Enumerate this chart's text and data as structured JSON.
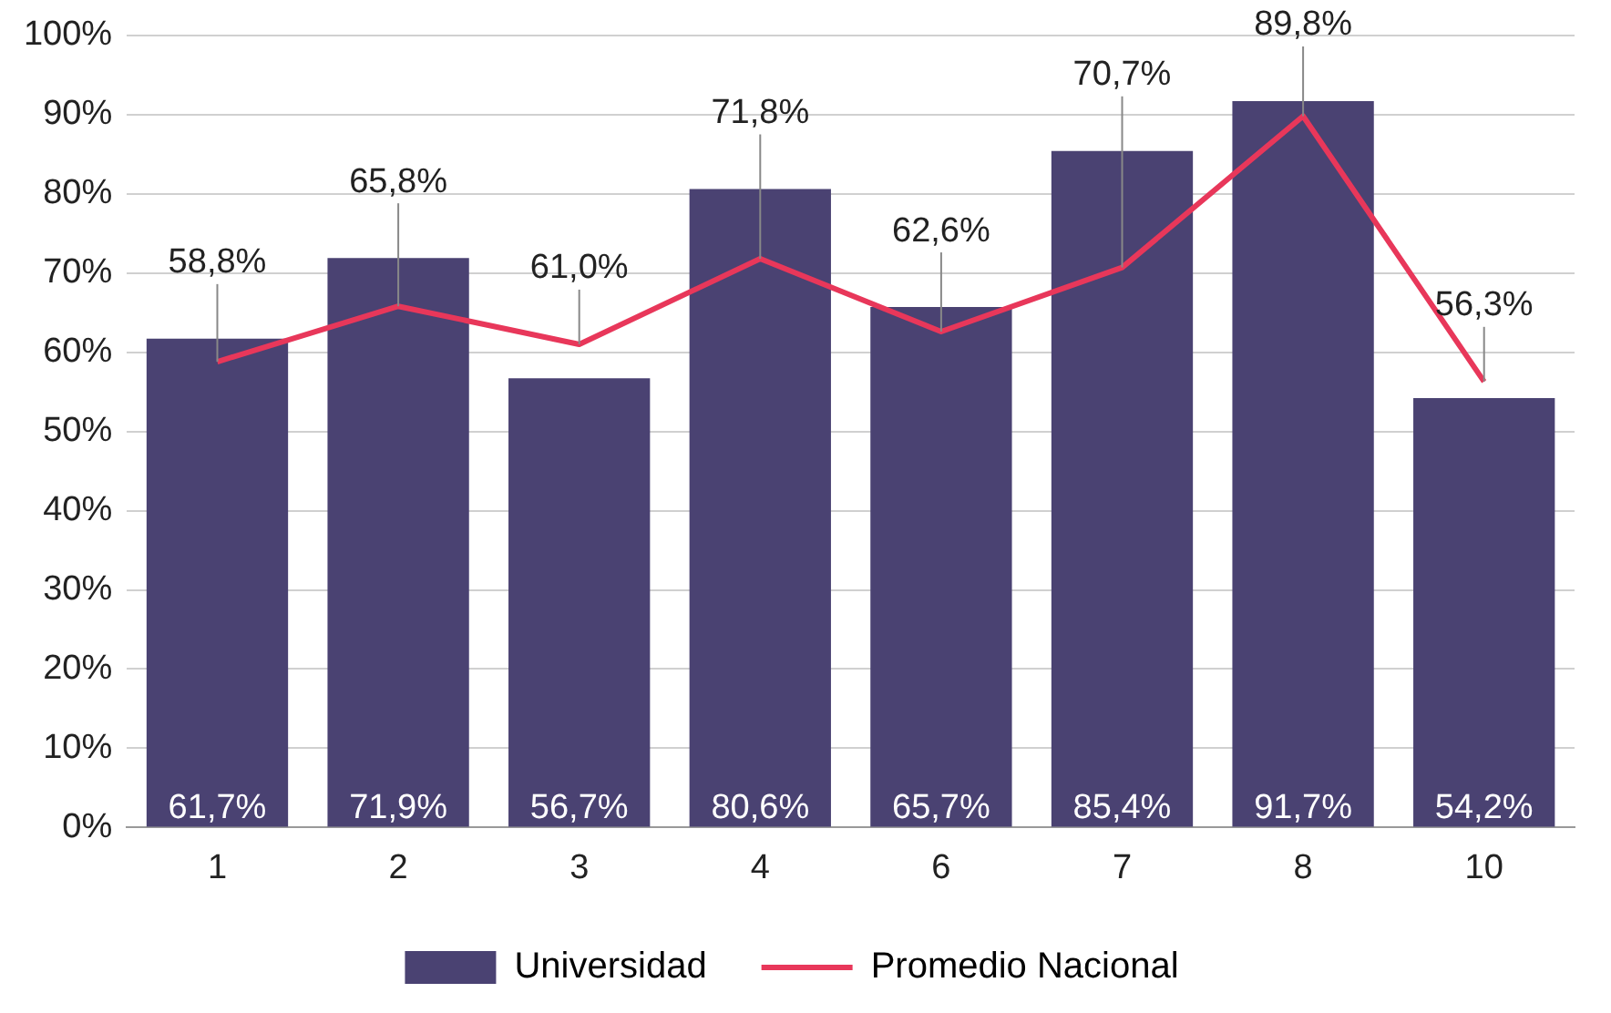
{
  "chart_data": {
    "type": "bar",
    "categories": [
      "1",
      "2",
      "3",
      "4",
      "6",
      "7",
      "8",
      "10"
    ],
    "series": [
      {
        "name": "Universidad",
        "color": "#4a4272",
        "values": [
          61.7,
          71.9,
          56.7,
          80.6,
          65.7,
          85.4,
          91.7,
          54.2
        ],
        "value_labels": [
          "61,7%",
          "71,9%",
          "56,7%",
          "80,6%",
          "65,7%",
          "85,4%",
          "91,7%",
          "54,2%"
        ]
      },
      {
        "name": "Promedio Nacional",
        "type": "line",
        "color": "#e8375a",
        "values": [
          58.8,
          65.8,
          61.0,
          71.8,
          62.6,
          70.7,
          89.8,
          56.3
        ],
        "value_labels": [
          "58,8%",
          "65,8%",
          "61,0%",
          "71,8%",
          "62,6%",
          "70,7%",
          "89,8%",
          "56,3%"
        ]
      }
    ],
    "ylim": [
      0,
      100
    ],
    "yticks": [
      {
        "value": 0,
        "label": "0%"
      },
      {
        "value": 10,
        "label": "10%"
      },
      {
        "value": 20,
        "label": "20%"
      },
      {
        "value": 30,
        "label": "30%"
      },
      {
        "value": 40,
        "label": "40%"
      },
      {
        "value": 50,
        "label": "50%"
      },
      {
        "value": 60,
        "label": "60%"
      },
      {
        "value": 70,
        "label": "70%"
      },
      {
        "value": 80,
        "label": "80%"
      },
      {
        "value": 90,
        "label": "90%"
      },
      {
        "value": 100,
        "label": "100%"
      }
    ],
    "grid": "y",
    "legend": "bottom",
    "marker": "none",
    "line_style": "solid"
  }
}
